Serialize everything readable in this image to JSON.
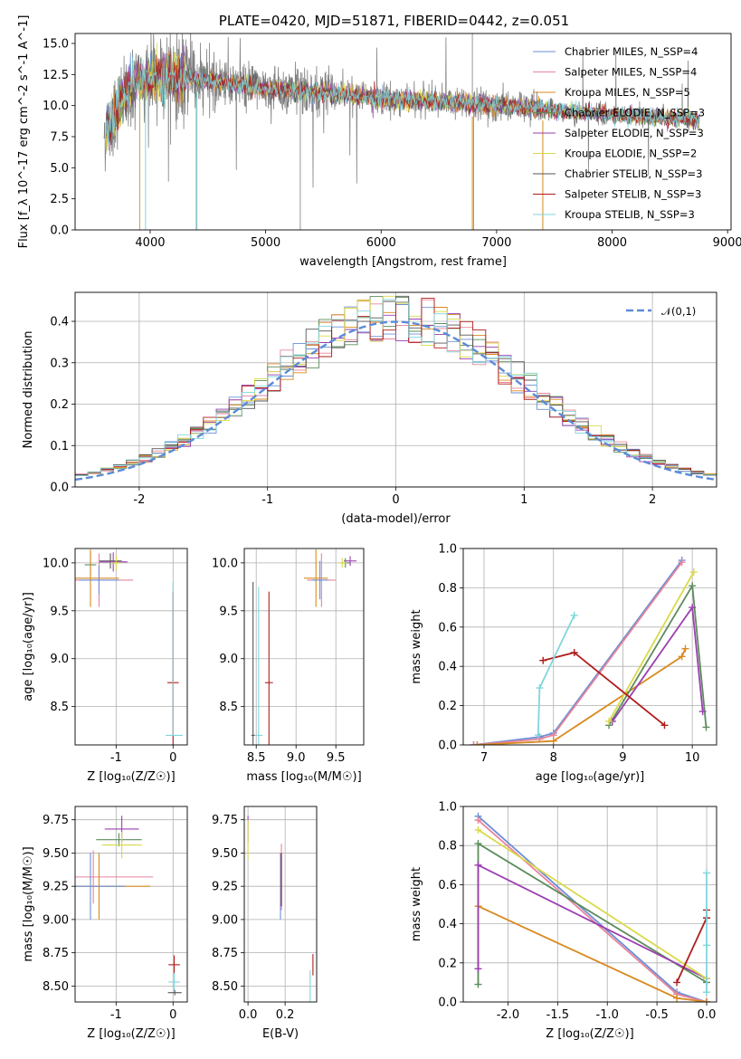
{
  "chart_data": [
    {
      "id": "spectrum",
      "type": "line",
      "title": "PLATE=0420, MJD=51871, FIBERID=0442, z=0.051",
      "xlabel": "wavelength [Angstrom, rest frame]",
      "ylabel": "Flux [f_λ 10^-17 erg cm^-2 s^-1 A^-1]",
      "xlim": [
        3350,
        9030
      ],
      "ylim": [
        0,
        15.8
      ],
      "xticks": [
        4000,
        5000,
        6000,
        7000,
        8000,
        9000
      ],
      "yticks": [
        0.0,
        2.5,
        5.0,
        7.5,
        10.0,
        12.5,
        15.0
      ],
      "legend_position": "top-right",
      "legend": [
        {
          "label": "Chabrier MILES, N_SSP=4",
          "color": "#6b8fd6"
        },
        {
          "label": "Salpeter MILES, N_SSP=4",
          "color": "#e8849b"
        },
        {
          "label": "Kroupa MILES, N_SSP=5",
          "color": "#d88a1f"
        },
        {
          "label": "Chabrier ELODIE, N_SSP=3",
          "color": "#5c8c5c"
        },
        {
          "label": "Salpeter ELODIE, N_SSP=3",
          "color": "#9b3fb0"
        },
        {
          "label": "Kroupa ELODIE, N_SSP=2",
          "color": "#d9d94a"
        },
        {
          "label": "Chabrier STELIB, N_SSP=3",
          "color": "#555555"
        },
        {
          "label": "Salpeter STELIB, N_SSP=3",
          "color": "#b01c1c"
        },
        {
          "label": "Kroupa STELIB, N_SSP=3",
          "color": "#7fd6dc"
        }
      ],
      "data_continuum": {
        "x": [
          3620,
          3700,
          3800,
          3900,
          4000,
          4200,
          4500,
          5000,
          5500,
          6000,
          6500,
          7000,
          7400,
          7600,
          8000,
          8400,
          8760
        ],
        "y": [
          8.0,
          9.5,
          11.0,
          12.0,
          12.2,
          12.3,
          12.0,
          11.4,
          11.0,
          10.6,
          10.3,
          10.0,
          9.8,
          9.5,
          9.3,
          9.0,
          8.8
        ]
      }
    },
    {
      "id": "residuals",
      "type": "line",
      "xlabel": "(data-model)/error",
      "ylabel": "Normed distribution",
      "xlim": [
        -2.5,
        2.5
      ],
      "ylim": [
        0,
        0.47
      ],
      "xticks": [
        -2,
        -1,
        0,
        1,
        2
      ],
      "yticks": [
        0.0,
        0.1,
        0.2,
        0.3,
        0.4
      ],
      "legend_position": "top-right",
      "gauss_label": "𝒩(0,1)",
      "gauss_color": "#5b8bd8"
    },
    {
      "id": "age_vs_Z",
      "type": "scatter",
      "xlabel": "Z [log₁₀(Z/Z☉)]",
      "ylabel": "age  [log₁₀(age/yr)]",
      "xlim": [
        -1.72,
        0.25
      ],
      "ylim": [
        8.1,
        10.15
      ],
      "xticks": [
        -1,
        0
      ],
      "yticks": [
        8.5,
        9.0,
        9.5,
        10.0
      ],
      "points": [
        {
          "x": -1.1,
          "xerr": 0.2,
          "y": 10.02,
          "yerr": 0.08,
          "color": "#555555"
        },
        {
          "x": -1.05,
          "xerr": 0.25,
          "y": 10.01,
          "yerr": 0.1,
          "color": "#9b3fb0"
        },
        {
          "x": -1.0,
          "xerr": 0.1,
          "y": 10.0,
          "yerr": 0.08,
          "color": "#d9d94a"
        },
        {
          "x": -1.45,
          "xerr": 0.1,
          "y": 9.98,
          "yerr": 0.12,
          "color": "#5c8c5c"
        },
        {
          "x": -1.45,
          "xerr": 0.5,
          "y": 9.84,
          "yerr": 0.3,
          "color": "#d88a1f"
        },
        {
          "x": -1.3,
          "xerr": 0.6,
          "y": 9.82,
          "yerr": 0.28,
          "color": "#e8849b"
        },
        {
          "x": -1.3,
          "xerr": 0.35,
          "y": 9.82,
          "yerr": 0.15,
          "color": "#6b8fd6"
        },
        {
          "x": 0.0,
          "xerr": 0.1,
          "y": 8.75,
          "yerr": 0.95,
          "color": "#b01c1c"
        },
        {
          "x": 0.02,
          "xerr": 0.15,
          "y": 8.2,
          "yerr": 0.0,
          "color": "#7fd6dc"
        },
        {
          "x": 0.0,
          "xerr": 0.0,
          "y": 9.0,
          "yerr": 0.8,
          "color": "#7fd6dc"
        }
      ]
    },
    {
      "id": "age_vs_mass",
      "type": "scatter",
      "xlabel": "mass [log₁₀(M/M☉)]",
      "ylabel": "",
      "xlim": [
        8.35,
        9.85
      ],
      "ylim": [
        8.1,
        10.15
      ],
      "xticks": [
        8.5,
        9.0,
        9.5
      ],
      "yticks": [
        8.5,
        9.0,
        9.5,
        10.0
      ],
      "points": [
        {
          "x": 9.68,
          "xerr": 0.08,
          "y": 10.02,
          "yerr": 0.05,
          "color": "#9b3fb0"
        },
        {
          "x": 9.62,
          "xerr": 0.06,
          "y": 10.0,
          "yerr": 0.05,
          "color": "#5c8c5c"
        },
        {
          "x": 9.58,
          "xerr": 0.05,
          "y": 10.0,
          "yerr": 0.05,
          "color": "#d9d94a"
        },
        {
          "x": 9.25,
          "xerr": 0.15,
          "y": 9.84,
          "yerr": 0.3,
          "color": "#d88a1f"
        },
        {
          "x": 9.32,
          "xerr": 0.18,
          "y": 9.82,
          "yerr": 0.28,
          "color": "#e8849b"
        },
        {
          "x": 9.3,
          "xerr": 0.1,
          "y": 9.82,
          "yerr": 0.2,
          "color": "#6b8fd6"
        },
        {
          "x": 8.66,
          "xerr": 0.05,
          "y": 8.75,
          "yerr": 0.95,
          "color": "#b01c1c"
        },
        {
          "x": 8.53,
          "xerr": 0.05,
          "y": 8.2,
          "yerr": 1.55,
          "color": "#7fd6dc"
        },
        {
          "x": 8.46,
          "xerr": 0.02,
          "y": 8.2,
          "yerr": 1.6,
          "color": "#555555"
        }
      ]
    },
    {
      "id": "weight_vs_age",
      "type": "line",
      "xlabel": "age  [log₁₀(age/yr)]",
      "ylabel": "mass weight",
      "xlim": [
        6.7,
        10.35
      ],
      "ylim": [
        0,
        1
      ],
      "xticks": [
        7,
        8,
        9,
        10
      ],
      "yticks": [
        0.0,
        0.2,
        0.4,
        0.6,
        0.8,
        1.0
      ],
      "series": [
        {
          "color": "#6b8fd6",
          "x": [
            6.85,
            7.8,
            8.0,
            9.85
          ],
          "y": [
            0.0,
            0.04,
            0.06,
            0.94
          ]
        },
        {
          "color": "#e8849b",
          "x": [
            6.85,
            7.8,
            8.0,
            9.85
          ],
          "y": [
            0.0,
            0.03,
            0.05,
            0.93
          ]
        },
        {
          "color": "#d88a1f",
          "x": [
            6.9,
            8.0,
            9.85,
            9.9
          ],
          "y": [
            0.0,
            0.02,
            0.45,
            0.49
          ]
        },
        {
          "color": "#5c8c5c",
          "x": [
            8.8,
            10.0,
            10.2
          ],
          "y": [
            0.1,
            0.81,
            0.09
          ]
        },
        {
          "color": "#9b3fb0",
          "x": [
            8.85,
            10.0,
            10.15
          ],
          "y": [
            0.12,
            0.7,
            0.17
          ]
        },
        {
          "color": "#d9d94a",
          "x": [
            8.8,
            10.02
          ],
          "y": [
            0.12,
            0.88
          ]
        },
        {
          "color": "#b01c1c",
          "x": [
            7.85,
            8.3,
            9.6
          ],
          "y": [
            0.43,
            0.47,
            0.1
          ]
        },
        {
          "color": "#7fd6dc",
          "x": [
            7.78,
            7.8,
            8.3
          ],
          "y": [
            0.05,
            0.29,
            0.66
          ]
        }
      ]
    },
    {
      "id": "mass_vs_Z",
      "type": "scatter",
      "xlabel": "Z [log₁₀(Z/Z☉)]",
      "ylabel": "mass [log₁₀(M/M☉)]",
      "xlim": [
        -1.72,
        0.25
      ],
      "ylim": [
        8.38,
        9.85
      ],
      "xticks": [
        -1,
        0
      ],
      "yticks": [
        8.5,
        8.75,
        9.0,
        9.25,
        9.5,
        9.75
      ],
      "points": [
        {
          "x": -0.9,
          "xerr": 0.3,
          "y": 9.68,
          "yerr": 0.1,
          "color": "#9b3fb0"
        },
        {
          "x": -0.95,
          "xerr": 0.4,
          "y": 9.6,
          "yerr": 0.05,
          "color": "#5c8c5c"
        },
        {
          "x": -0.9,
          "xerr": 0.35,
          "y": 9.56,
          "yerr": 0.1,
          "color": "#d9d94a"
        },
        {
          "x": -1.4,
          "xerr": 1.05,
          "y": 9.32,
          "yerr": 0.2,
          "color": "#e8849b"
        },
        {
          "x": -1.3,
          "xerr": 0.9,
          "y": 9.25,
          "yerr": 0.25,
          "color": "#d88a1f"
        },
        {
          "x": -1.45,
          "xerr": 0.6,
          "y": 9.25,
          "yerr": 0.25,
          "color": "#6b8fd6"
        },
        {
          "x": 0.02,
          "xerr": 0.1,
          "y": 8.66,
          "yerr": 0.07,
          "color": "#b01c1c"
        },
        {
          "x": 0.02,
          "xerr": 0.1,
          "y": 8.53,
          "yerr": 0.07,
          "color": "#7fd6dc"
        },
        {
          "x": 0.03,
          "xerr": 0.12,
          "y": 8.45,
          "yerr": 0.02,
          "color": "#555555"
        }
      ]
    },
    {
      "id": "mass_vs_ebv",
      "type": "scatter",
      "xlabel": "E(B-V)",
      "ylabel": "",
      "xlim": [
        -0.02,
        0.37
      ],
      "ylim": [
        8.38,
        9.85
      ],
      "xticks": [
        0.0,
        0.2
      ],
      "yticks": [
        8.5,
        8.75,
        9.0,
        9.25,
        9.5,
        9.75
      ],
      "points": [
        {
          "x": 0.0,
          "xerr": 0.0,
          "y": 9.68,
          "yerr": 0.1,
          "color": "#9b3fb0"
        },
        {
          "x": 0.0,
          "xerr": 0.0,
          "y": 9.6,
          "yerr": 0.15,
          "color": "#d9d94a"
        },
        {
          "x": 0.18,
          "xerr": 0.0,
          "y": 9.32,
          "yerr": 0.25,
          "color": "#e8849b"
        },
        {
          "x": 0.175,
          "xerr": 0.0,
          "y": 9.25,
          "yerr": 0.25,
          "color": "#6b8fd6"
        },
        {
          "x": 0.18,
          "xerr": 0.0,
          "y": 9.3,
          "yerr": 0.2,
          "color": "#b01c1c"
        },
        {
          "x": 0.335,
          "xerr": 0.0,
          "y": 8.5,
          "yerr": 0.12,
          "color": "#7fd6dc"
        },
        {
          "x": 0.35,
          "xerr": 0.0,
          "y": 8.66,
          "yerr": 0.08,
          "color": "#b01c1c"
        }
      ]
    },
    {
      "id": "weight_vs_Z",
      "type": "line",
      "xlabel": "Z [log₁₀(Z/Z☉)]",
      "ylabel": "mass weight",
      "xlim": [
        -2.45,
        0.1
      ],
      "ylim": [
        0,
        1
      ],
      "xticks": [
        -2.0,
        -1.5,
        -1.0,
        -0.5,
        0.0
      ],
      "yticks": [
        0.0,
        0.2,
        0.4,
        0.6,
        0.8,
        1.0
      ],
      "series": [
        {
          "color": "#6b8fd6",
          "x": [
            -2.3,
            -0.3,
            0.0
          ],
          "y": [
            0.95,
            0.05,
            0.0
          ]
        },
        {
          "color": "#e8849b",
          "x": [
            -2.3,
            -0.3,
            0.0
          ],
          "y": [
            0.93,
            0.04,
            0.0
          ]
        },
        {
          "color": "#d88a1f",
          "x": [
            -2.3,
            -0.3,
            0.0
          ],
          "y": [
            0.49,
            0.02,
            0.0
          ]
        },
        {
          "color": "#5c8c5c",
          "x": [
            -2.3,
            -2.3,
            0.0
          ],
          "y": [
            0.09,
            0.81,
            0.1
          ]
        },
        {
          "color": "#9b3fb0",
          "x": [
            -2.3,
            -2.3,
            0.0
          ],
          "y": [
            0.17,
            0.7,
            0.12
          ]
        },
        {
          "color": "#d9d94a",
          "x": [
            -2.3,
            0.0
          ],
          "y": [
            0.88,
            0.12
          ]
        },
        {
          "color": "#b01c1c",
          "x": [
            -0.3,
            0.0,
            0.0
          ],
          "y": [
            0.1,
            0.43,
            0.47
          ]
        },
        {
          "color": "#7fd6dc",
          "x": [
            0.0,
            0.0,
            0.0
          ],
          "y": [
            0.05,
            0.29,
            0.66
          ]
        }
      ]
    }
  ]
}
